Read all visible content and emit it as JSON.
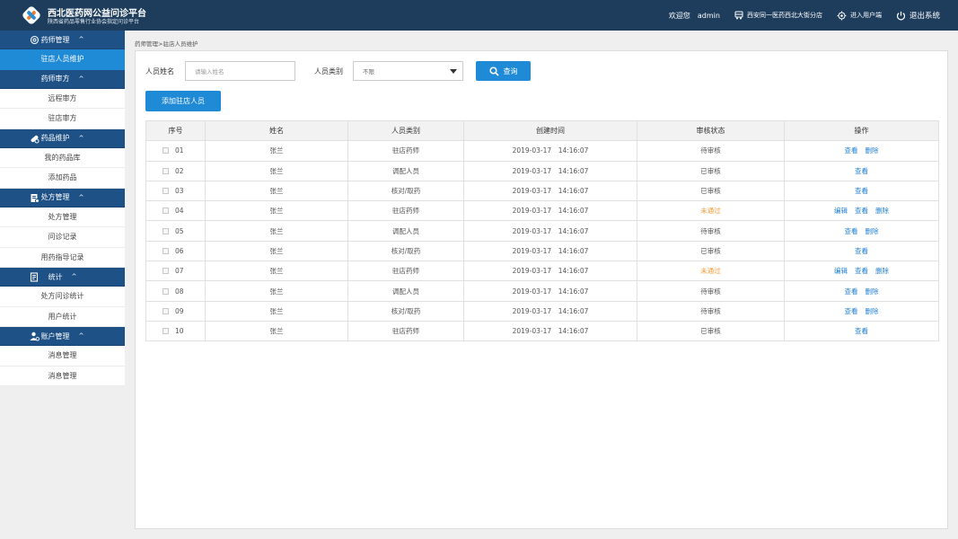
{
  "header": {
    "title": "西北医药网公益问诊平台",
    "subtitle": "陕西省药品零售行业协会指定问诊平台",
    "welcome": "欢迎您",
    "user": "admin",
    "store": "西安同一医药西北大街分店",
    "user_entry": "进入用户端",
    "logout": "退出系统"
  },
  "sidebar": {
    "groups": [
      {
        "label": "药师管理"
      },
      {
        "label": "药品维护"
      },
      {
        "label": "处方管理"
      },
      {
        "label": "统计"
      },
      {
        "label": "账户管理"
      }
    ],
    "sub": {
      "label": "药师审方"
    },
    "chevron": "^",
    "items": {
      "pharmacist_maint": "驻店人员维护",
      "remote_review": "远程审方",
      "store_review": "驻店审方",
      "my_drugs": "我的药品库",
      "add_drug": "添加药品",
      "rx_mgmt": "处方管理",
      "consult_records": "问诊记录",
      "med_guide_records": "用药指导记录",
      "rx_consult_stats": "处方问诊统计",
      "user_stats": "用户统计",
      "msg_mgmt_1": "消息管理",
      "msg_mgmt_2": "消息管理"
    }
  },
  "breadcrumb": "药师管理>驻店人员维护",
  "filters": {
    "name_label": "人员姓名",
    "name_placeholder": "请输入姓名",
    "type_label": "人员类别",
    "type_value": "不限",
    "query_label": "查询"
  },
  "add_button": "添加驻店人员",
  "table": {
    "headers": [
      "序号",
      "姓名",
      "人员类别",
      "创建时间",
      "审核状态",
      "操作"
    ],
    "actions": {
      "edit": "编辑",
      "view": "查看",
      "delete": "删除"
    },
    "rows": [
      {
        "idx": "01",
        "name": "张兰",
        "type": "驻店药师",
        "time": "2019-03-17　14:16:07",
        "status": "待审核"
      },
      {
        "idx": "02",
        "name": "张兰",
        "type": "调配人员",
        "time": "2019-03-17　14:16:07",
        "status": "已审核"
      },
      {
        "idx": "03",
        "name": "张兰",
        "type": "核对/取药",
        "time": "2019-03-17　14:16:07",
        "status": "已审核"
      },
      {
        "idx": "04",
        "name": "张兰",
        "type": "驻店药师",
        "time": "2019-03-17　14:16:07",
        "status": "未通过"
      },
      {
        "idx": "05",
        "name": "张兰",
        "type": "调配人员",
        "time": "2019-03-17　14:16:07",
        "status": "待审核"
      },
      {
        "idx": "06",
        "name": "张兰",
        "type": "核对/取药",
        "time": "2019-03-17　14:16:07",
        "status": "已审核"
      },
      {
        "idx": "07",
        "name": "张兰",
        "type": "驻店药师",
        "time": "2019-03-17　14:16:07",
        "status": "未通过"
      },
      {
        "idx": "08",
        "name": "张兰",
        "type": "调配人员",
        "time": "2019-03-17　14:16:07",
        "status": "待审核"
      },
      {
        "idx": "09",
        "name": "张兰",
        "type": "核对/取药",
        "time": "2019-03-17　14:16:07",
        "status": "待审核"
      },
      {
        "idx": "10",
        "name": "张兰",
        "type": "驻店药师",
        "time": "2019-03-17　14:16:07",
        "status": "已审核"
      }
    ]
  },
  "colors": {
    "header_bg": "#1e3d5c",
    "nav_bg": "#1e5186",
    "accent": "#1f8ad6",
    "link": "#1f7fd0",
    "rejected": "#f29b36"
  },
  "icons": [
    "logo-icon",
    "store-icon",
    "user-switch-icon",
    "power-icon",
    "pharmacist-icon",
    "drug-icon",
    "prescription-icon",
    "stats-icon",
    "account-icon",
    "search-icon",
    "dropdown-arrow-icon"
  ]
}
